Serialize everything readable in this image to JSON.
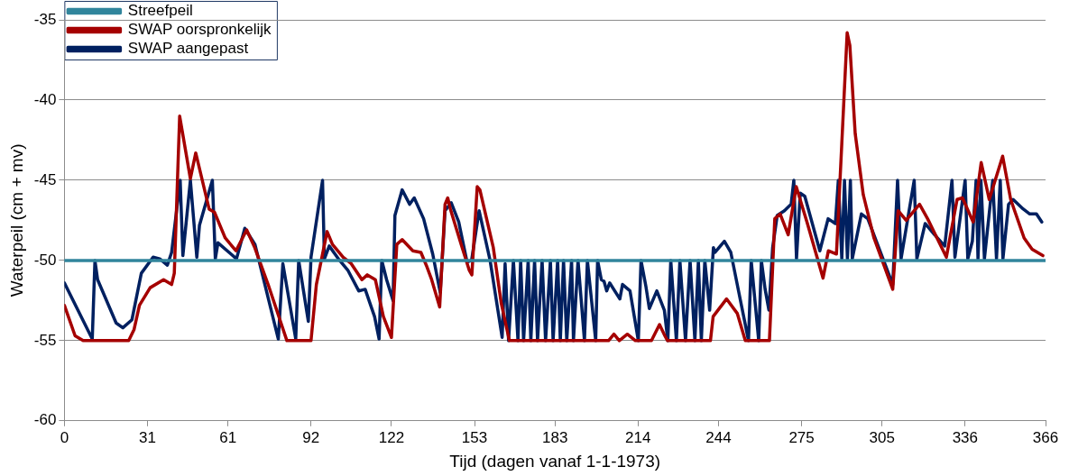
{
  "chart_data": {
    "type": "line",
    "xlabel": "Tijd (dagen vanaf 1-1-1973)",
    "ylabel": "Waterpeil (cm + mv)",
    "xlim": [
      0,
      366
    ],
    "xticks": [
      0,
      31,
      61,
      92,
      122,
      153,
      183,
      214,
      244,
      275,
      305,
      336,
      366
    ],
    "ylim": [
      -60,
      -35
    ],
    "yticks": [
      -60,
      -55,
      -50,
      -45,
      -40,
      -35
    ],
    "grid": "y",
    "legend": "top left",
    "marker": "none",
    "line_style": "solid",
    "series": [
      {
        "name": "Streefpeil",
        "color": "#31859c",
        "x": [
          0,
          366
        ],
        "values": [
          -50,
          -50
        ]
      },
      {
        "name": "SWAP oorspronkelijk",
        "color": "#a50000",
        "x": [
          0,
          4,
          7,
          24,
          26,
          28,
          32,
          37,
          40,
          41,
          43,
          47,
          49,
          54,
          56,
          60,
          64,
          68,
          71,
          76,
          83,
          92,
          94,
          98,
          100,
          104,
          107,
          111,
          113,
          116,
          119,
          122,
          124,
          126,
          130,
          133,
          135,
          137,
          140,
          142,
          143,
          144,
          148,
          151,
          152,
          154,
          155,
          160,
          163,
          166,
          203,
          205,
          207,
          210,
          213,
          219,
          222,
          224,
          225,
          241,
          242,
          247,
          251,
          254,
          263,
          265,
          267,
          270,
          273,
          277,
          283,
          285,
          288,
          290,
          292,
          293,
          295,
          298,
          302,
          309,
          311,
          314,
          319,
          322,
          329,
          333,
          335,
          339,
          342,
          345,
          350,
          353,
          358,
          361,
          365
        ],
        "values": [
          -52.8,
          -54.7,
          -55,
          -55,
          -54.3,
          -52.8,
          -51.7,
          -51.2,
          -51.5,
          -50.8,
          -41,
          -44.9,
          -43.3,
          -46.8,
          -47,
          -48.6,
          -49.4,
          -48.1,
          -49.2,
          -51.5,
          -55,
          -55,
          -51.5,
          -48.2,
          -49,
          -49.8,
          -50.2,
          -51.2,
          -50.9,
          -51.2,
          -53.5,
          -54.8,
          -49,
          -48.7,
          -49.4,
          -49.5,
          -50.3,
          -51.2,
          -52.9,
          -46.5,
          -46.1,
          -46.8,
          -49,
          -50.6,
          -50.9,
          -45.4,
          -45.6,
          -49.2,
          -52.7,
          -55,
          -55,
          -54.6,
          -55,
          -54.6,
          -55,
          -55,
          -54,
          -54.7,
          -55,
          -55,
          -53.5,
          -52.4,
          -53.3,
          -55,
          -55,
          -47.4,
          -47.1,
          -48.4,
          -45.4,
          -47.6,
          -51.1,
          -49.4,
          -49.6,
          -42.7,
          -35.8,
          -36.6,
          -42.1,
          -45.9,
          -48.6,
          -51.8,
          -46.9,
          -47.5,
          -46.5,
          -47.4,
          -49.8,
          -46.2,
          -46.1,
          -47.6,
          -43.9,
          -46.2,
          -43.5,
          -46.2,
          -48.6,
          -49.3,
          -49.7
        ]
      },
      {
        "name": "SWAP aangepast",
        "color": "#002060",
        "x": [
          0,
          10.4,
          11.4,
          12.4,
          19.3,
          21.8,
          25.2,
          28.7,
          33.1,
          35.6,
          38.4,
          40,
          43.2,
          44.2,
          47,
          49.4,
          50.4,
          55.2,
          56.3,
          57.3,
          64.2,
          67.3,
          71.1,
          79.8,
          81.5,
          86.3,
          87.4,
          91,
          92,
          96.3,
          97,
          98.8,
          102.2,
          105.7,
          109.8,
          112.2,
          115.7,
          117.4,
          118.4,
          120.2,
          122.6,
          123.3,
          126,
          128.8,
          130.5,
          134,
          137.4,
          140.2,
          142,
          144.3,
          147.1,
          150.2,
          151.9,
          154.7,
          158.8,
          163.3,
          164.4,
          165.7,
          167.5,
          169.2,
          170.2,
          171.3,
          173,
          174,
          175.4,
          176.5,
          178.2,
          179.5,
          181.3,
          182.3,
          184,
          185,
          186.2,
          187.4,
          189.2,
          189.9,
          191.6,
          194,
          195.1,
          198.2,
          198.9,
          200.3,
          201.3,
          202.3,
          203.4,
          207.2,
          208.2,
          211,
          214.1,
          215.1,
          216.9,
          218.2,
          221,
          223.8,
          225.1,
          226.2,
          228.3,
          229.6,
          231.7,
          233.4,
          235.2,
          236.5,
          237.6,
          238.9,
          240.7,
          242.1,
          242.7,
          246.2,
          248.6,
          255.2,
          256.2,
          259,
          260,
          261.4,
          262.8,
          264.2,
          265.9,
          268.6,
          271.1,
          272.1,
          273.1,
          274.5,
          276.2,
          281.8,
          284.9,
          287.6,
          288.7,
          290,
          291,
          292.1,
          293.2,
          293.9,
          297.3,
          299.7,
          309,
          310.8,
          312.1,
          317,
          318,
          321.1,
          324.6,
          328.4,
          331.1,
          332.2,
          336,
          337,
          338.7,
          340.1,
          340.8,
          341.9,
          343.2,
          346.3,
          347.7,
          349.1,
          350.1,
          352.2,
          353.9,
          357.7,
          360.1,
          362.6,
          364.6
        ],
        "values": [
          -51.4,
          -54.9,
          -50,
          -51.2,
          -53.9,
          -54.2,
          -53.7,
          -50.8,
          -49.8,
          -49.9,
          -50.3,
          -49.5,
          -45,
          -49.7,
          -45,
          -49.8,
          -47.8,
          -45,
          -49.9,
          -48.9,
          -49.9,
          -48,
          -49,
          -54.9,
          -50.2,
          -54.9,
          -50,
          -53.8,
          -49.8,
          -45,
          -49.9,
          -49.1,
          -49.9,
          -50.6,
          -51.9,
          -51.8,
          -53.5,
          -54.9,
          -50,
          -51.2,
          -52.5,
          -47.2,
          -45.6,
          -46.5,
          -46.1,
          -47.4,
          -49.6,
          -52,
          -46.9,
          -46.4,
          -47.6,
          -50.1,
          -50,
          -46.9,
          -50,
          -54.8,
          -50.2,
          -55,
          -50,
          -55,
          -50,
          -55,
          -50,
          -55,
          -50,
          -55,
          -50,
          -55,
          -50,
          -55,
          -50,
          -55,
          -50,
          -55,
          -50,
          -55,
          -50,
          -55,
          -50,
          -55,
          -50,
          -51.2,
          -51.3,
          -51.9,
          -51.4,
          -52.4,
          -51.5,
          -51.9,
          -55,
          -50,
          -51.6,
          -53,
          -51.9,
          -53.1,
          -55,
          -50,
          -55,
          -50,
          -55,
          -50,
          -55,
          -50,
          -55,
          -50,
          -53.1,
          -49.2,
          -49.5,
          -48.8,
          -49.5,
          -55,
          -50,
          -55,
          -50,
          -51.8,
          -53.1,
          -49.2,
          -47.2,
          -46.9,
          -46.5,
          -45,
          -49.9,
          -45.8,
          -46,
          -49.4,
          -47.4,
          -47.7,
          -45,
          -49.9,
          -45,
          -49.9,
          -45,
          -49.9,
          -47.1,
          -47.4,
          -51.5,
          -45,
          -49.9,
          -45,
          -49.9,
          -47.7,
          -48.4,
          -49.1,
          -45,
          -49.8,
          -45,
          -49.9,
          -48.8,
          -45,
          -49.9,
          -45,
          -49.9,
          -45,
          -49.9,
          -45,
          -49.9,
          -46.5,
          -46.2,
          -46.8,
          -47.1,
          -47.1,
          -47.6
        ]
      }
    ]
  }
}
